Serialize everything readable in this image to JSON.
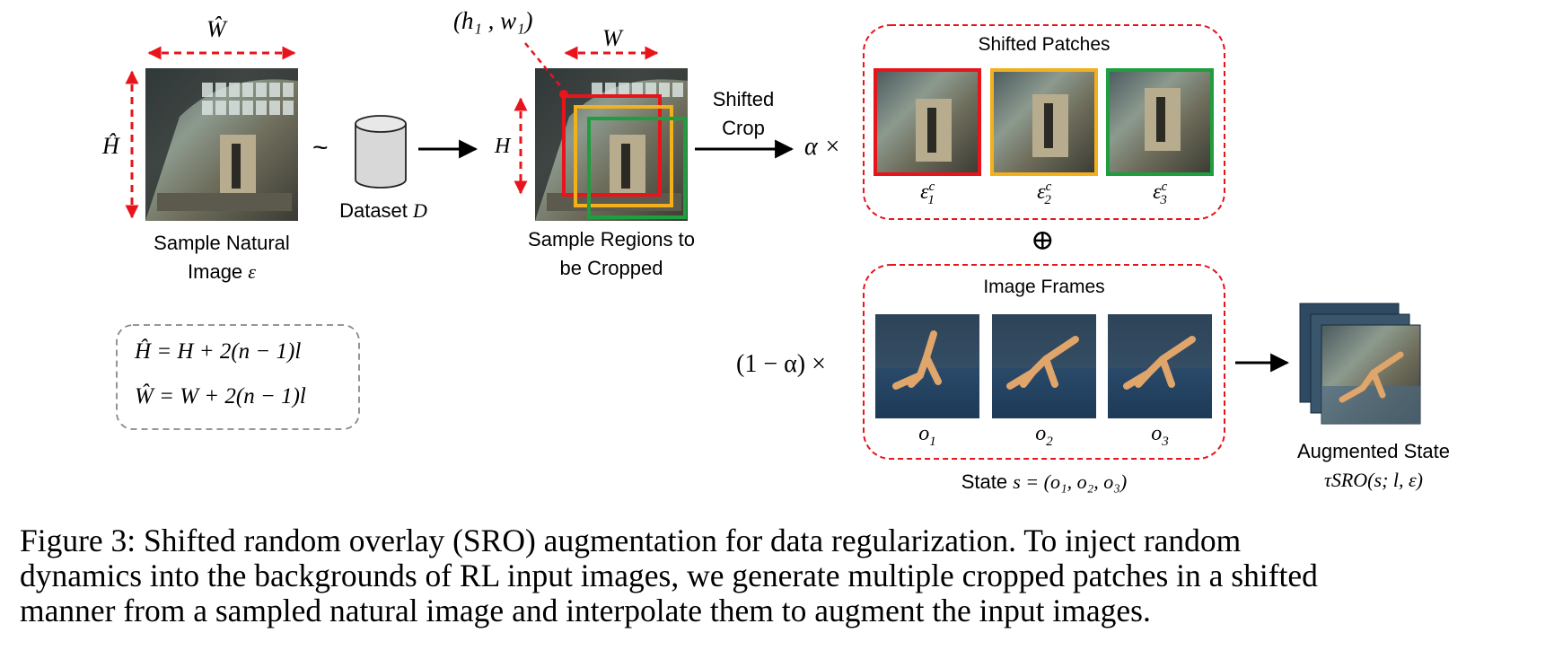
{
  "natural_image": {
    "width_symbol": "Ŵ",
    "height_symbol": "Ĥ",
    "tilde": "~",
    "caption_line1": "Sample Natural",
    "caption_line2_text": "Image",
    "caption_line2_symbol": "ε"
  },
  "dataset": {
    "label_text": "Dataset",
    "label_symbol": "D"
  },
  "crop_region": {
    "corner_label": "(h₁ , w₁)",
    "width_symbol": "W",
    "height_symbol": "H",
    "caption_line1": "Sample Regions to",
    "caption_line2": "be Cropped",
    "box_colors": [
      "#e8141c",
      "#f2b01c",
      "#1e9e3e"
    ]
  },
  "shift_arrow": {
    "line1": "Shifted",
    "line2": "Crop"
  },
  "alpha_label": "α ×",
  "shifted_patches": {
    "title": "Shifted Patches",
    "patches": [
      {
        "label": "ε",
        "sup": "c",
        "sub": "1",
        "color": "#e8141c"
      },
      {
        "label": "ε",
        "sup": "c",
        "sub": "2",
        "color": "#f2b01c"
      },
      {
        "label": "ε",
        "sup": "c",
        "sub": "3",
        "color": "#1e9e3e"
      }
    ]
  },
  "oplus": "⊕",
  "image_frames": {
    "title": "Image Frames",
    "frames": [
      {
        "label": "o",
        "sub": "1"
      },
      {
        "label": "o",
        "sub": "2"
      },
      {
        "label": "o",
        "sub": "3"
      }
    ]
  },
  "one_minus_alpha_label": "(1 − α) ×",
  "state_label": {
    "text": "State",
    "formula": "s = (o₁, o₂, o₃)"
  },
  "augmented": {
    "line1": "Augmented State",
    "line2": "τSRO(s; l, ε)"
  },
  "equations": [
    {
      "lhs": "Ĥ",
      "rhs": "= H + 2(n − 1)l"
    },
    {
      "lhs": "Ŵ",
      "rhs": "= W + 2(n − 1)l"
    }
  ],
  "caption": [
    "Figure 3: Shifted random overlay (SRO) augmentation for data regularization. To inject random",
    "dynamics into the backgrounds of RL input images, we generate multiple cropped patches in a shifted",
    "manner from a sampled natural image and interpolate them to augment the input images."
  ],
  "accent_red": "#e8141c"
}
